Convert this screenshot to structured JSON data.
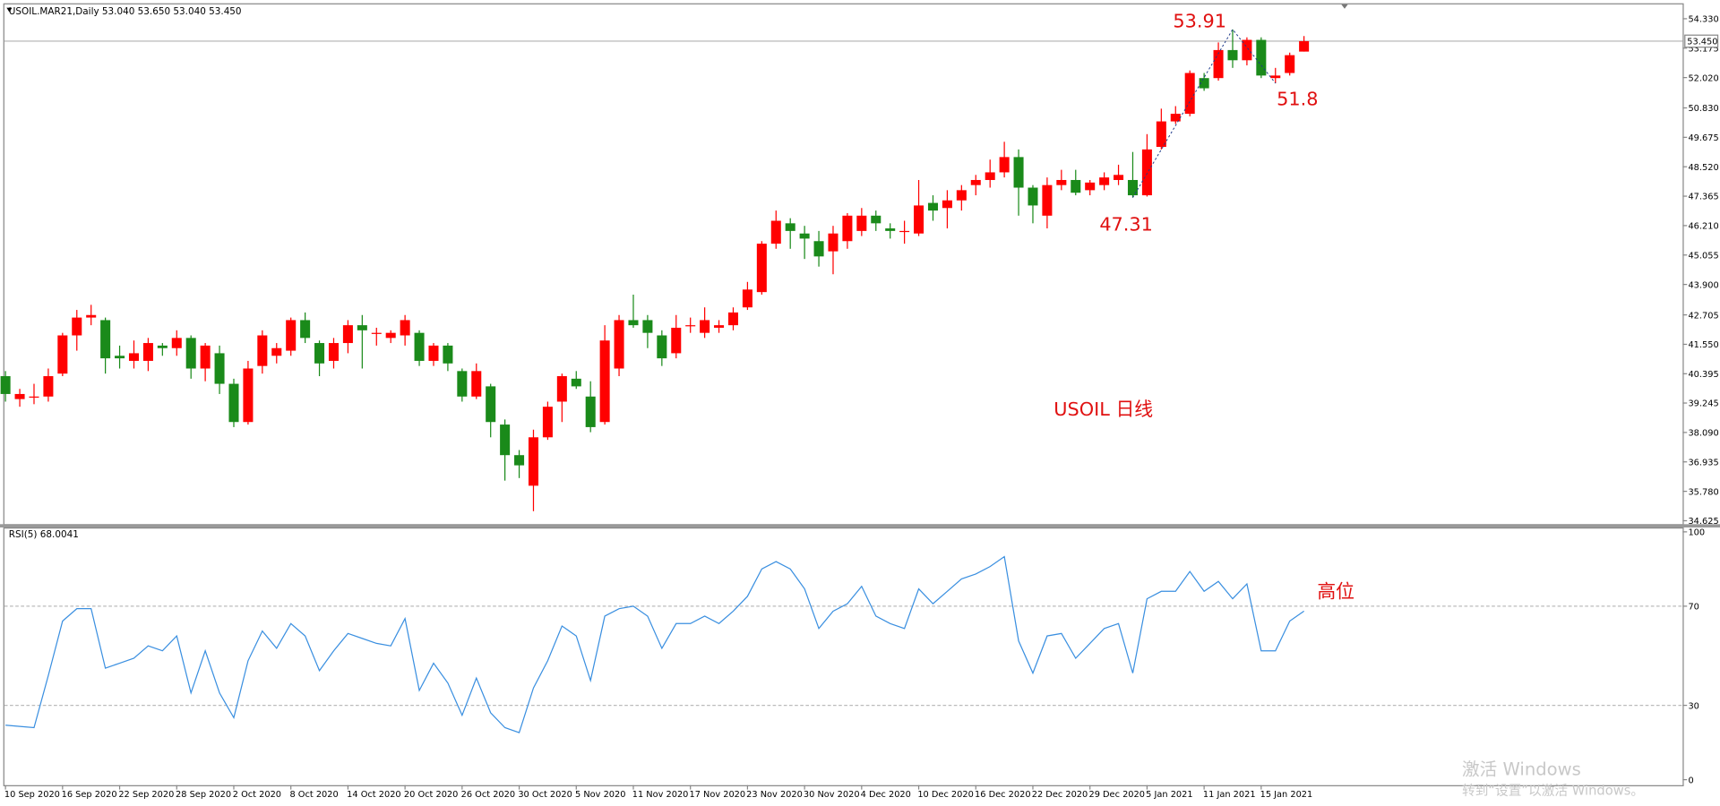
{
  "chart_data": [
    {
      "type": "candlestick",
      "header": "USOIL.MAR21,Daily  53.040 53.650 53.040 53.450",
      "categories": [
        "10 Sep 2020",
        null,
        null,
        null,
        "16 Sep 2020",
        null,
        null,
        null,
        "22 Sep 2020",
        null,
        null,
        null,
        "28 Sep 2020",
        null,
        null,
        null,
        "2 Oct 2020",
        null,
        null,
        null,
        "8 Oct 2020",
        null,
        null,
        null,
        "14 Oct 2020",
        null,
        null,
        null,
        "20 Oct 2020",
        null,
        null,
        null,
        "26 Oct 2020",
        null,
        null,
        null,
        "30 Oct 2020",
        null,
        null,
        null,
        "5 Nov 2020",
        null,
        null,
        null,
        "11 Nov 2020",
        null,
        null,
        null,
        "17 Nov 2020",
        null,
        null,
        null,
        "23 Nov 2020",
        null,
        null,
        null,
        "30 Nov 2020",
        null,
        null,
        null,
        "4 Dec 2020",
        null,
        null,
        null,
        "10 Dec 2020",
        null,
        null,
        null,
        "16 Dec 2020",
        null,
        null,
        null,
        "22 Dec 2020",
        null,
        null,
        null,
        "29 Dec 2020",
        null,
        null,
        null,
        "5 Jan 2021",
        null,
        null,
        null,
        "11 Jan 2021",
        null,
        null,
        null,
        "15 Jan 2021",
        null,
        null,
        null
      ],
      "open": [
        40.3,
        39.4,
        39.5,
        39.5,
        40.4,
        41.9,
        42.6,
        42.5,
        41.1,
        40.9,
        40.9,
        41.5,
        41.4,
        41.8,
        40.6,
        41.2,
        40.0,
        38.5,
        40.7,
        41.1,
        41.3,
        42.5,
        41.6,
        40.9,
        41.6,
        42.3,
        42.0,
        41.8,
        41.9,
        42.0,
        40.9,
        41.5,
        40.5,
        39.5,
        39.9,
        38.4,
        37.2,
        36.0,
        37.9,
        39.3,
        40.2,
        39.5,
        38.5,
        40.6,
        42.5,
        42.5,
        41.9,
        41.2,
        42.3,
        42.0,
        42.2,
        42.3,
        43.0,
        43.6,
        45.5,
        46.3,
        45.9,
        45.6,
        45.2,
        45.6,
        46.0,
        46.6,
        46.1,
        46.0,
        45.9,
        47.1,
        46.9,
        47.2,
        47.8,
        48.0,
        48.3,
        48.9,
        47.7,
        46.6,
        47.8,
        48.0,
        47.6,
        47.8,
        48.0,
        48.0,
        47.4,
        49.3,
        50.3,
        50.6,
        52.0,
        52.0,
        53.1,
        52.7,
        53.5,
        52.0,
        52.2,
        53.04
      ],
      "high": [
        40.5,
        39.8,
        40.0,
        40.6,
        42.0,
        42.9,
        43.1,
        42.6,
        41.5,
        41.7,
        41.8,
        41.6,
        42.1,
        41.9,
        41.6,
        41.5,
        40.2,
        40.9,
        42.1,
        41.6,
        42.6,
        42.8,
        41.7,
        41.8,
        42.5,
        42.7,
        42.2,
        42.1,
        42.7,
        42.1,
        41.6,
        41.6,
        40.6,
        40.8,
        40.0,
        38.6,
        37.4,
        38.2,
        39.3,
        40.4,
        40.5,
        40.1,
        42.3,
        42.7,
        43.5,
        42.7,
        42.1,
        42.7,
        42.6,
        43.0,
        42.5,
        43.0,
        44.0,
        45.6,
        46.8,
        46.5,
        46.2,
        46.0,
        46.2,
        46.7,
        46.9,
        46.8,
        46.3,
        46.4,
        48.0,
        47.4,
        47.6,
        47.8,
        48.2,
        48.8,
        49.5,
        49.2,
        47.8,
        48.1,
        48.4,
        48.4,
        48.0,
        48.3,
        48.6,
        49.1,
        49.8,
        50.8,
        50.9,
        52.3,
        52.2,
        53.4,
        53.91,
        53.6,
        53.6,
        52.4,
        53.0,
        53.65
      ],
      "low": [
        39.3,
        39.1,
        39.2,
        39.3,
        40.3,
        41.3,
        42.3,
        40.4,
        40.6,
        40.6,
        40.5,
        41.1,
        41.1,
        40.2,
        40.1,
        39.6,
        38.3,
        38.4,
        40.4,
        40.8,
        41.1,
        41.6,
        40.3,
        40.6,
        41.2,
        40.6,
        41.5,
        41.6,
        41.5,
        40.7,
        40.7,
        40.5,
        39.3,
        39.4,
        37.9,
        36.2,
        36.3,
        35.0,
        37.8,
        38.5,
        39.8,
        38.1,
        38.4,
        40.3,
        42.2,
        41.4,
        40.7,
        41.0,
        42.0,
        41.8,
        42.0,
        42.1,
        42.9,
        43.5,
        45.3,
        45.3,
        44.9,
        44.6,
        44.3,
        45.3,
        45.8,
        46.0,
        45.7,
        45.5,
        45.8,
        46.4,
        46.1,
        46.8,
        47.4,
        47.7,
        48.1,
        46.6,
        46.3,
        46.1,
        47.6,
        47.4,
        47.4,
        47.6,
        47.8,
        47.31,
        47.35,
        49.2,
        50.2,
        50.5,
        51.5,
        51.9,
        52.4,
        52.5,
        52.0,
        51.8,
        52.1,
        53.04
      ],
      "close": [
        39.6,
        39.6,
        39.5,
        40.3,
        41.9,
        42.6,
        42.7,
        41.0,
        41.0,
        41.2,
        41.6,
        41.4,
        41.8,
        40.6,
        41.5,
        40.0,
        38.5,
        40.6,
        41.9,
        41.4,
        42.5,
        41.8,
        40.8,
        41.6,
        42.3,
        42.1,
        42.0,
        42.0,
        42.5,
        40.9,
        41.5,
        40.8,
        39.5,
        40.5,
        38.5,
        37.2,
        36.8,
        37.9,
        39.1,
        40.3,
        39.9,
        38.3,
        41.7,
        42.5,
        42.3,
        42.0,
        41.0,
        42.2,
        42.3,
        42.5,
        42.3,
        42.8,
        43.7,
        45.5,
        46.4,
        46.0,
        45.7,
        45.0,
        45.9,
        46.6,
        46.6,
        46.3,
        46.0,
        46.0,
        47.0,
        46.8,
        47.2,
        47.6,
        48.0,
        48.3,
        48.9,
        47.7,
        47.0,
        47.8,
        48.0,
        47.5,
        47.9,
        48.1,
        48.2,
        47.4,
        49.2,
        50.3,
        50.6,
        52.2,
        51.6,
        53.1,
        52.7,
        53.5,
        52.1,
        52.1,
        52.9,
        53.45
      ],
      "up_color": "#ff0000",
      "down_color": "#1a8a1a",
      "ylim": [
        34.49,
        54.85
      ],
      "yticks": [
        {
          "value": 54.33,
          "label": "54.330"
        },
        {
          "value": 53.175,
          "label": "53.175"
        },
        {
          "value": 52.02,
          "label": "52.020"
        },
        {
          "value": 50.83,
          "label": "50.830"
        },
        {
          "value": 49.675,
          "label": "49.675"
        },
        {
          "value": 48.52,
          "label": "48.520"
        },
        {
          "value": 47.365,
          "label": "47.365"
        },
        {
          "value": 46.21,
          "label": "46.210"
        },
        {
          "value": 45.055,
          "label": "45.055"
        },
        {
          "value": 43.9,
          "label": "43.900"
        },
        {
          "value": 42.705,
          "label": "42.705"
        },
        {
          "value": 41.55,
          "label": "41.550"
        },
        {
          "value": 40.395,
          "label": "40.395"
        },
        {
          "value": 39.245,
          "label": "39.245"
        },
        {
          "value": 38.09,
          "label": "38.090"
        },
        {
          "value": 36.935,
          "label": "36.935"
        },
        {
          "value": 35.78,
          "label": "35.780"
        },
        {
          "value": 34.625,
          "label": "34.625"
        }
      ],
      "last_price": {
        "value": 53.45,
        "label": "53.450"
      },
      "zigzag": [
        47.31,
        53.91,
        51.8
      ],
      "annotations": [
        "USOIL 日线"
      ]
    },
    {
      "type": "line",
      "title": "RSI(5) 68.0041",
      "series": [
        {
          "color": "#3a8fe0",
          "values": [
            22,
            21.5,
            21,
            42,
            64,
            69,
            69,
            45,
            47,
            49,
            54,
            52,
            58,
            35,
            52,
            35,
            25,
            48,
            60,
            53,
            63,
            58,
            44,
            52,
            59,
            57,
            55,
            54,
            65,
            36,
            47,
            39,
            26,
            41,
            27,
            21,
            19,
            37,
            48,
            62,
            58,
            40,
            66,
            69,
            70,
            66,
            53,
            63,
            63,
            66,
            63,
            68,
            74,
            85,
            88,
            85,
            77,
            61,
            68,
            71,
            78,
            66,
            63,
            61,
            77,
            71,
            76,
            81,
            83,
            86,
            90,
            56,
            43,
            58,
            59,
            49,
            55,
            61,
            63,
            43,
            73,
            76,
            76,
            84,
            76,
            80,
            73,
            79,
            52,
            52,
            64,
            68.0041
          ]
        }
      ],
      "ylim": [
        0,
        100
      ],
      "yticks": [
        100,
        70,
        30,
        0
      ],
      "levels": [
        70,
        30
      ],
      "annotations": [
        "高位"
      ]
    }
  ],
  "watermark": [
    "激活 Windows",
    "转到“设置”以激活 Windows。"
  ]
}
